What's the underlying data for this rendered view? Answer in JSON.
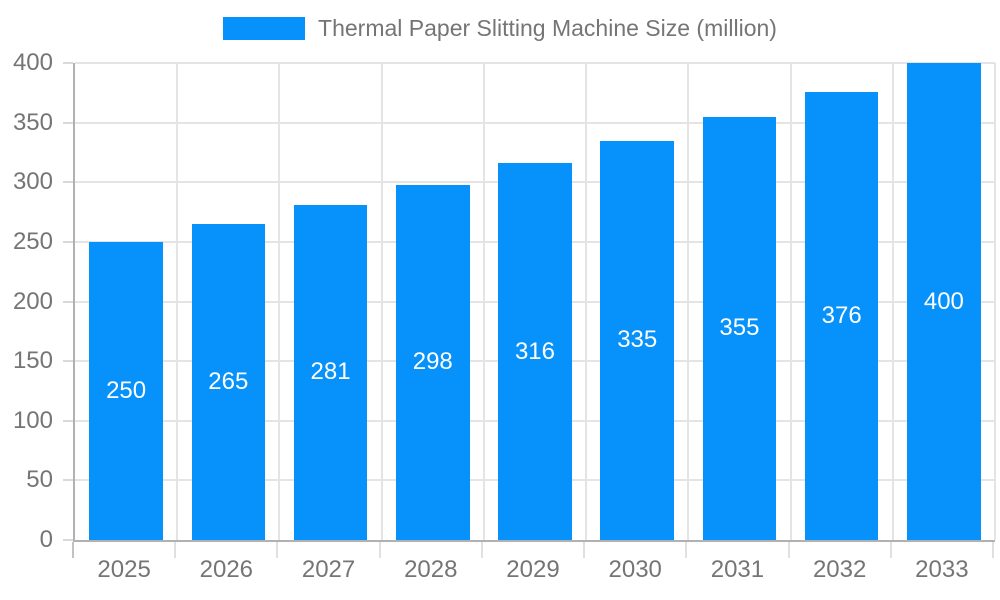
{
  "colors": {
    "bar": "#0691fb",
    "grid": "#e4e4e4",
    "axis": "#b1b1b1",
    "y_tick": "#d9d9d9",
    "x_tick": "#e0e0e0",
    "x_tick_major": "#c2c2c2",
    "text": "#757575",
    "value_label": "#ffffff",
    "background": "#ffffff"
  },
  "chart_data": {
    "type": "bar",
    "categories": [
      "2025",
      "2026",
      "2027",
      "2028",
      "2029",
      "2030",
      "2031",
      "2032",
      "2033"
    ],
    "series": [
      {
        "name": "Thermal Paper Slitting Machine Size (million)",
        "values": [
          250,
          265,
          281,
          298,
          316,
          335,
          355,
          376,
          400
        ],
        "color": "#0691fb"
      }
    ],
    "ylim": [
      0,
      400
    ],
    "yticks": [
      0,
      50,
      100,
      150,
      200,
      250,
      300,
      350,
      400
    ],
    "grid": true,
    "legend_position": "top-center",
    "value_labels_position": "inside-middle"
  }
}
